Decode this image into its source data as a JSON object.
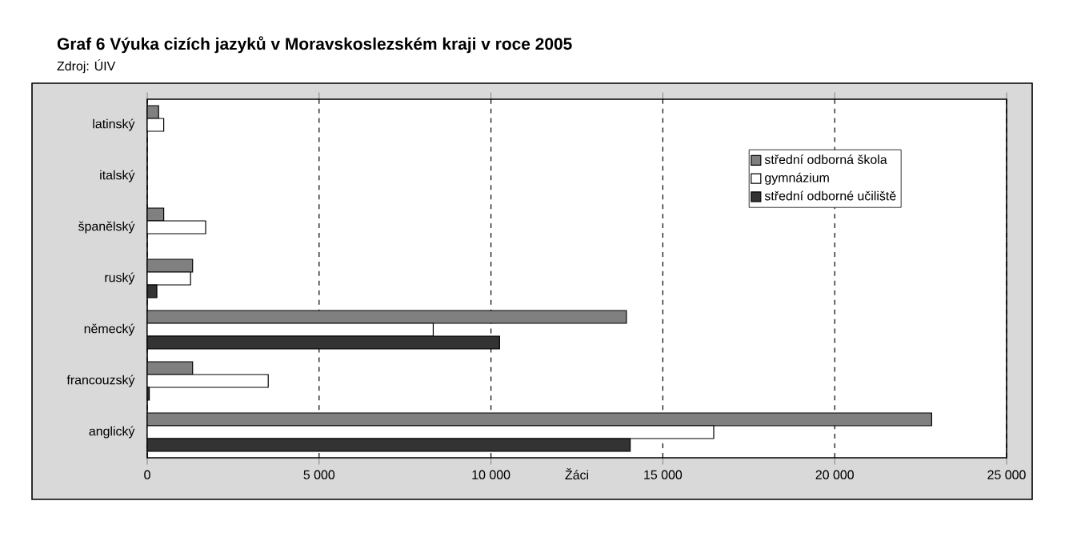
{
  "chart_data": {
    "type": "bar",
    "orientation": "horizontal",
    "title": "Graf 6 Výuka cizích jazyků v Moravskoslezském kraji v roce 2005",
    "annotations": [
      "Zdroj: ÚIV"
    ],
    "xlabel": "Žáci",
    "categories": [
      "latinský",
      "italský",
      "španělský",
      "ruský",
      "německý",
      "francouzský",
      "anglický"
    ],
    "series": [
      {
        "name": "střední odborná škola",
        "color": "#808080",
        "values": [
          330,
          null,
          480,
          1320,
          13940,
          1320,
          22820
        ]
      },
      {
        "name": "gymnázium",
        "color": "#ffffff",
        "values": [
          480,
          null,
          1700,
          1260,
          8320,
          3520,
          16480
        ]
      },
      {
        "name": "střední odborné učiliště",
        "color": "#333333",
        "values": [
          null,
          null,
          null,
          280,
          10250,
          60,
          14050
        ]
      }
    ],
    "xlim": [
      0,
      25000
    ],
    "xticks": [
      0,
      {
        "value": 5000,
        "label": "5 000"
      },
      {
        "value": 10000,
        "label": "10 000"
      },
      {
        "value": 15000,
        "label": "15 000"
      },
      {
        "value": 20000,
        "label": "20 000"
      },
      {
        "value": 25000,
        "label": "25 000"
      }
    ],
    "grid": "x",
    "legend": "top right"
  }
}
